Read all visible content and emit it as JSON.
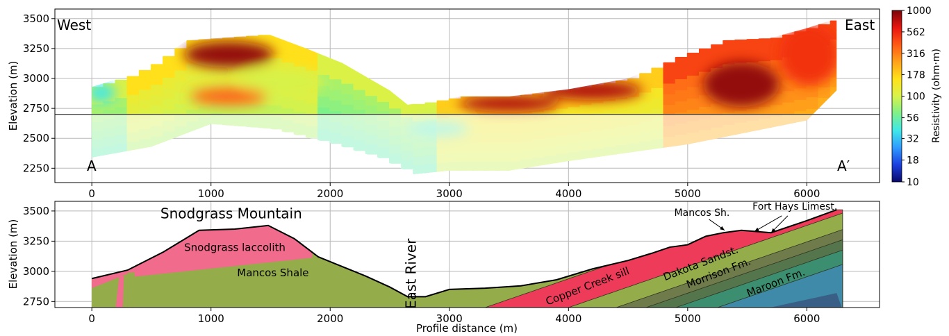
{
  "chart_data": [
    {
      "type": "heatmap",
      "title": "",
      "xlabel": "",
      "ylabel": "Elevation (m)",
      "xlim": [
        -310,
        6610
      ],
      "ylim": [
        2130,
        3580
      ],
      "xticks": [
        "0",
        "1000",
        "2000",
        "3000",
        "4000",
        "5000",
        "6000"
      ],
      "yticks": [
        "2250",
        "2500",
        "2750",
        "3000",
        "3250",
        "3500"
      ],
      "grid": true,
      "corner_labels": {
        "top_left": "West",
        "top_right": "East",
        "bottom_left": "A",
        "bottom_right": "A′"
      },
      "reference_line_elevation": 2700,
      "colorbar": {
        "label": "Resistivity (ohm·m)",
        "scale": "log",
        "range": [
          10,
          1000
        ],
        "ticks": [
          "1000",
          "562",
          "316",
          "178",
          "100",
          "56",
          "32",
          "18",
          "10"
        ],
        "colors": [
          "#08086b",
          "#1a3fe0",
          "#2f9bff",
          "#3fe8e8",
          "#7ef08a",
          "#d8f24a",
          "#ffe21a",
          "#ffa21a",
          "#ff5a14",
          "#e8140f",
          "#7a0508"
        ]
      },
      "model_top_profile": [
        [
          0,
          2930
        ],
        [
          300,
          3020
        ],
        [
          500,
          3120
        ],
        [
          800,
          3320
        ],
        [
          1100,
          3340
        ],
        [
          1480,
          3370
        ],
        [
          1800,
          3250
        ],
        [
          2100,
          3130
        ],
        [
          2500,
          2900
        ],
        [
          2650,
          2780
        ],
        [
          2800,
          2800
        ],
        [
          3100,
          2850
        ],
        [
          3500,
          2850
        ],
        [
          4000,
          2910
        ],
        [
          4500,
          3000
        ],
        [
          4900,
          3180
        ],
        [
          5300,
          3320
        ],
        [
          5700,
          3340
        ],
        [
          6000,
          3420
        ],
        [
          6250,
          3500
        ]
      ],
      "model_bottom_profile": [
        [
          0,
          2340
        ],
        [
          500,
          2430
        ],
        [
          1000,
          2620
        ],
        [
          1500,
          2580
        ],
        [
          2000,
          2460
        ],
        [
          2400,
          2340
        ],
        [
          2700,
          2200
        ],
        [
          3000,
          2230
        ],
        [
          3500,
          2230
        ],
        [
          4000,
          2310
        ],
        [
          4500,
          2380
        ],
        [
          5000,
          2450
        ],
        [
          5500,
          2550
        ],
        [
          6000,
          2650
        ],
        [
          6250,
          2900
        ]
      ],
      "anomalies": [
        {
          "x": 1150,
          "y": 3200,
          "rx": 380,
          "ry": 110,
          "resistivity": 900
        },
        {
          "x": 5450,
          "y": 2950,
          "rx": 320,
          "ry": 190,
          "resistivity": 900
        },
        {
          "x": 3500,
          "y": 2790,
          "rx": 420,
          "ry": 70,
          "resistivity": 800
        },
        {
          "x": 4200,
          "y": 2900,
          "rx": 420,
          "ry": 80,
          "resistivity": 800
        },
        {
          "x": 6020,
          "y": 3200,
          "rx": 250,
          "ry": 260,
          "resistivity": 520
        },
        {
          "x": 80,
          "y": 2880,
          "rx": 120,
          "ry": 80,
          "resistivity": 40
        },
        {
          "x": 1600,
          "y": 2970,
          "rx": 350,
          "ry": 110,
          "resistivity": 100
        },
        {
          "x": 1150,
          "y": 2850,
          "rx": 320,
          "ry": 70,
          "resistivity": 380
        },
        {
          "x": 2900,
          "y": 2580,
          "rx": 260,
          "ry": 60,
          "resistivity": 45
        }
      ]
    },
    {
      "type": "area",
      "title": "",
      "xlabel": "Profile distance (m)",
      "ylabel": "Elevation (m)",
      "xlim": [
        -310,
        6610
      ],
      "ylim": [
        2700,
        3580
      ],
      "xticks": [
        "0",
        "1000",
        "2000",
        "3000",
        "4000",
        "5000",
        "6000"
      ],
      "yticks": [
        "2750",
        "3000",
        "3250",
        "3500"
      ],
      "grid": true,
      "surface_profile": [
        [
          0,
          2940
        ],
        [
          300,
          3010
        ],
        [
          600,
          3160
        ],
        [
          900,
          3340
        ],
        [
          1200,
          3350
        ],
        [
          1480,
          3380
        ],
        [
          1700,
          3270
        ],
        [
          1900,
          3120
        ],
        [
          2050,
          3060
        ],
        [
          2300,
          2960
        ],
        [
          2500,
          2870
        ],
        [
          2650,
          2790
        ],
        [
          2800,
          2790
        ],
        [
          3000,
          2850
        ],
        [
          3300,
          2860
        ],
        [
          3600,
          2880
        ],
        [
          3900,
          2930
        ],
        [
          4200,
          3020
        ],
        [
          4500,
          3090
        ],
        [
          4700,
          3150
        ],
        [
          4850,
          3200
        ],
        [
          5000,
          3220
        ],
        [
          5150,
          3290
        ],
        [
          5300,
          3320
        ],
        [
          5450,
          3340
        ],
        [
          5700,
          3320
        ],
        [
          6000,
          3420
        ],
        [
          6250,
          3510
        ]
      ],
      "units": [
        {
          "name": "Snodgrass laccolith",
          "color": "#f06b8c"
        },
        {
          "name": "Mancos Shale",
          "color": "#94ad4a"
        },
        {
          "name": "Copper Creek sill",
          "color": "#ef3b5a"
        },
        {
          "name": "Mancos Sh.",
          "color": "#94ad4a"
        },
        {
          "name": "Fort Hays Limest.",
          "color": "#6f7b4a"
        },
        {
          "name": "Dakota Sandst.",
          "color": "#55764c"
        },
        {
          "name": "Morrison Fm.",
          "color": "#3c8e70"
        },
        {
          "name": "Maroon Fm.",
          "color": "#3f8aa8"
        }
      ],
      "annotations": [
        {
          "text": "Snodgrass Mountain",
          "x": 1170,
          "y": 3440,
          "kind": "feature"
        },
        {
          "text": "Snodgrass laccolith",
          "x": 1200,
          "y": 3170,
          "kind": "unit"
        },
        {
          "text": "Mancos Shale",
          "x": 1520,
          "y": 2960,
          "kind": "unit"
        },
        {
          "text": "East River",
          "x": 2720,
          "y": 2980,
          "kind": "feature"
        },
        {
          "text": "Copper Creek sill",
          "x": 4170,
          "y": 2850,
          "kind": "unit"
        },
        {
          "text": "Dakota Sandst.",
          "x": 5120,
          "y": 3040,
          "kind": "unit"
        },
        {
          "text": "Morrison Fm.",
          "x": 5270,
          "y": 2960,
          "kind": "unit"
        },
        {
          "text": "Maroon Fm.",
          "x": 5750,
          "y": 2880,
          "kind": "unit"
        },
        {
          "text": "Mancos Sh.",
          "x": 5120,
          "y": 3460,
          "kind": "callout"
        },
        {
          "text": "Fort Hays Limest.",
          "x": 5900,
          "y": 3510,
          "kind": "callout"
        }
      ]
    }
  ]
}
